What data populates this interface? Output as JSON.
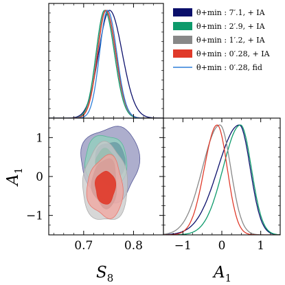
{
  "chart_data": {
    "type": "corner",
    "parameters": [
      "S_8",
      "A_1"
    ],
    "xlabel_left_symbol": "S",
    "xlabel_left_sub": "8",
    "xlabel_right_symbol": "A",
    "xlabel_right_sub": "1",
    "ylabel_symbol": "A",
    "ylabel_sub": "1",
    "s8_range": [
      0.63,
      0.86
    ],
    "a1_range": [
      -1.5,
      1.5
    ],
    "s8_ticks": [
      "0.7",
      "0.8"
    ],
    "a1_ticks": [
      "−1",
      "0",
      "1"
    ],
    "series": [
      {
        "name": "θ+min : 7′.1, + IA",
        "color": "#0b0f6b",
        "style": "filled",
        "s8_marginal": {
          "mean": 0.752,
          "sd": 0.022
        },
        "a1_marginal": {
          "peak": 0.45,
          "sd_left": 0.55,
          "sd_right": 0.28
        },
        "contour": {
          "center": [
            0.752,
            0.35
          ],
          "r68": [
            0.03,
            0.55
          ],
          "r95": [
            0.058,
            0.95
          ]
        }
      },
      {
        "name": "θ+min : 2′.9, + IA",
        "color": "#0d9a6b",
        "style": "filled",
        "s8_marginal": {
          "mean": 0.742,
          "sd": 0.017
        },
        "a1_marginal": {
          "peak": 0.48,
          "sd_left": 0.45,
          "sd_right": 0.28
        },
        "contour": {
          "center": [
            0.743,
            0.35
          ],
          "r68": [
            0.02,
            0.35
          ],
          "r95": [
            0.042,
            0.72
          ]
        }
      },
      {
        "name": "θ+min : 1′.2, + IA",
        "color": "#888888",
        "style": "filled",
        "s8_marginal": {
          "mean": 0.744,
          "sd": 0.017
        },
        "a1_marginal": {
          "peak": -0.05,
          "sd_left": 0.45,
          "sd_right": 0.28
        },
        "contour": {
          "center": [
            0.742,
            -0.18
          ],
          "r68": [
            0.025,
            0.62
          ],
          "r95": [
            0.045,
            1.0
          ]
        }
      },
      {
        "name": "θ+min : 0′.28, + IA",
        "color": "#e03a2a",
        "style": "filled",
        "s8_marginal": {
          "mean": 0.745,
          "sd": 0.017
        },
        "a1_marginal": {
          "peak": -0.12,
          "sd_left": 0.33,
          "sd_right": 0.26
        },
        "contour": {
          "center": [
            0.743,
            -0.28
          ],
          "r68": [
            0.02,
            0.42
          ],
          "r95": [
            0.036,
            0.78
          ]
        }
      },
      {
        "name": "θ+min : 0′.28, fid",
        "color": "#2d7fd8",
        "style": "line",
        "s8_marginal": {
          "mean": 0.748,
          "sd": 0.016
        },
        "a1_marginal": null,
        "contour": null
      }
    ],
    "legend": {
      "placement": "top-right"
    },
    "grid": false
  }
}
